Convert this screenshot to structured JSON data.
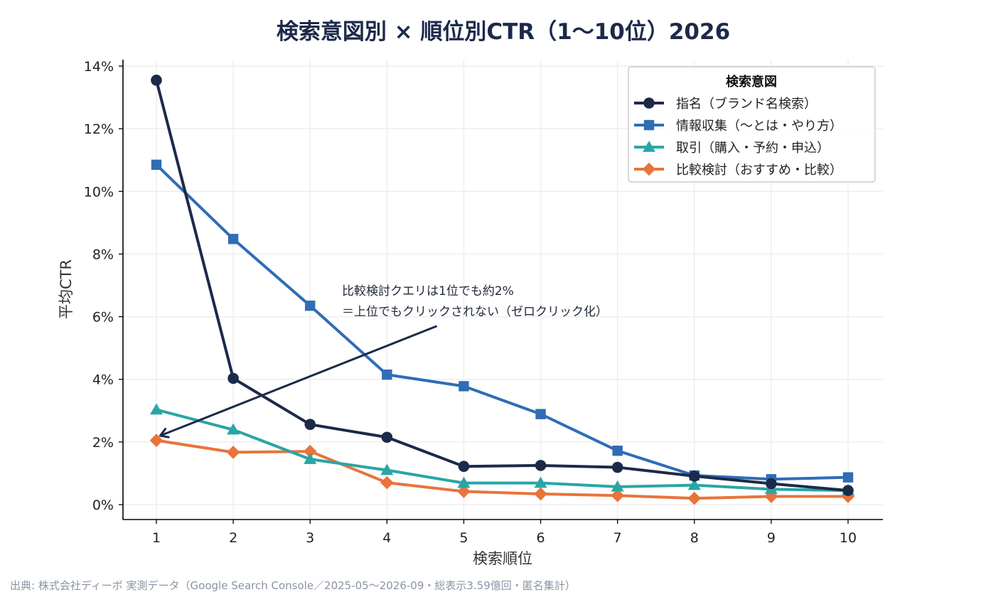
{
  "colors": {
    "navy": "#1c2a4a",
    "blue": "#2f6db5",
    "teal": "#2aa5a5",
    "orange": "#e8743b",
    "grid": "#eeeeee",
    "source_text": "#8a94a6"
  },
  "chart_data": {
    "type": "line",
    "title": "検索意図別 × 順位別CTR（1〜10位）2026",
    "xlabel": "検索順位",
    "ylabel": "平均CTR",
    "x": [
      1,
      2,
      3,
      4,
      5,
      6,
      7,
      8,
      9,
      10
    ],
    "x_tick_labels": [
      "1",
      "2",
      "3",
      "4",
      "5",
      "6",
      "7",
      "8",
      "9",
      "10"
    ],
    "ylim": [
      0,
      14
    ],
    "y_ticks": [
      0,
      2,
      4,
      6,
      8,
      10,
      12,
      14
    ],
    "y_tick_labels": [
      "0%",
      "2%",
      "4%",
      "6%",
      "8%",
      "10%",
      "12%",
      "14%"
    ],
    "grid": true,
    "legend": {
      "title": "検索意図",
      "position": "top-right"
    },
    "series": [
      {
        "name": "指名（ブランド名検索）",
        "color": "#1c2a4a",
        "marker": "circle",
        "values": [
          13.55,
          4.03,
          2.56,
          2.15,
          1.22,
          1.25,
          1.19,
          0.91,
          0.67,
          0.45
        ]
      },
      {
        "name": "情報収集（〜とは・やり方）",
        "color": "#2f6db5",
        "marker": "square",
        "values": [
          10.85,
          8.48,
          6.35,
          4.15,
          3.78,
          2.89,
          1.72,
          0.93,
          0.81,
          0.87
        ]
      },
      {
        "name": "取引（購入・予約・申込）",
        "color": "#2aa5a5",
        "marker": "triangle",
        "values": [
          3.03,
          2.39,
          1.45,
          1.1,
          0.69,
          0.69,
          0.57,
          0.62,
          0.49,
          0.45
        ]
      },
      {
        "name": "比較検討（おすすめ・比較）",
        "color": "#e8743b",
        "marker": "diamond",
        "values": [
          2.05,
          1.67,
          1.7,
          0.7,
          0.42,
          0.34,
          0.29,
          0.2,
          0.26,
          0.26
        ]
      }
    ],
    "annotation": {
      "lines": [
        "比較検討クエリは1位でも約2%",
        "＝上位でもクリックされない（ゼロクリック化）"
      ],
      "arrow_from": [
        4.65,
        5.7
      ],
      "arrow_to": [
        1.05,
        2.2
      ]
    },
    "source": "出典: 株式会社ディーボ 実測データ（Google Search Console／2025-05〜2026-09・総表示3.59億回・匿名集計）"
  }
}
